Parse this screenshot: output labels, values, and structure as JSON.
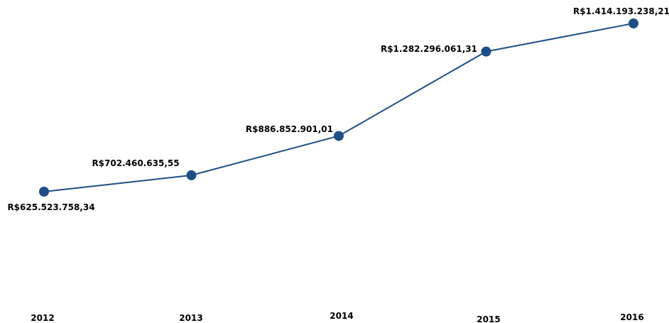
{
  "chart_data": {
    "type": "line",
    "title": "",
    "xlabel": "",
    "ylabel": "",
    "categories": [
      "2012",
      "2013",
      "2014",
      "2015",
      "2016"
    ],
    "series": [
      {
        "values": [
          625523758.34,
          702460635.55,
          886852901.01,
          1282296061.31,
          1414193238.21
        ],
        "labels": [
          "R$625.523.758,34",
          "R$702.460.635,55",
          "R$886.852.901,01",
          "R$1.282.296.061,31",
          "R$1.414.193.238,21"
        ],
        "color": "#1f4e87"
      }
    ],
    "grid": false,
    "legend": "none"
  }
}
